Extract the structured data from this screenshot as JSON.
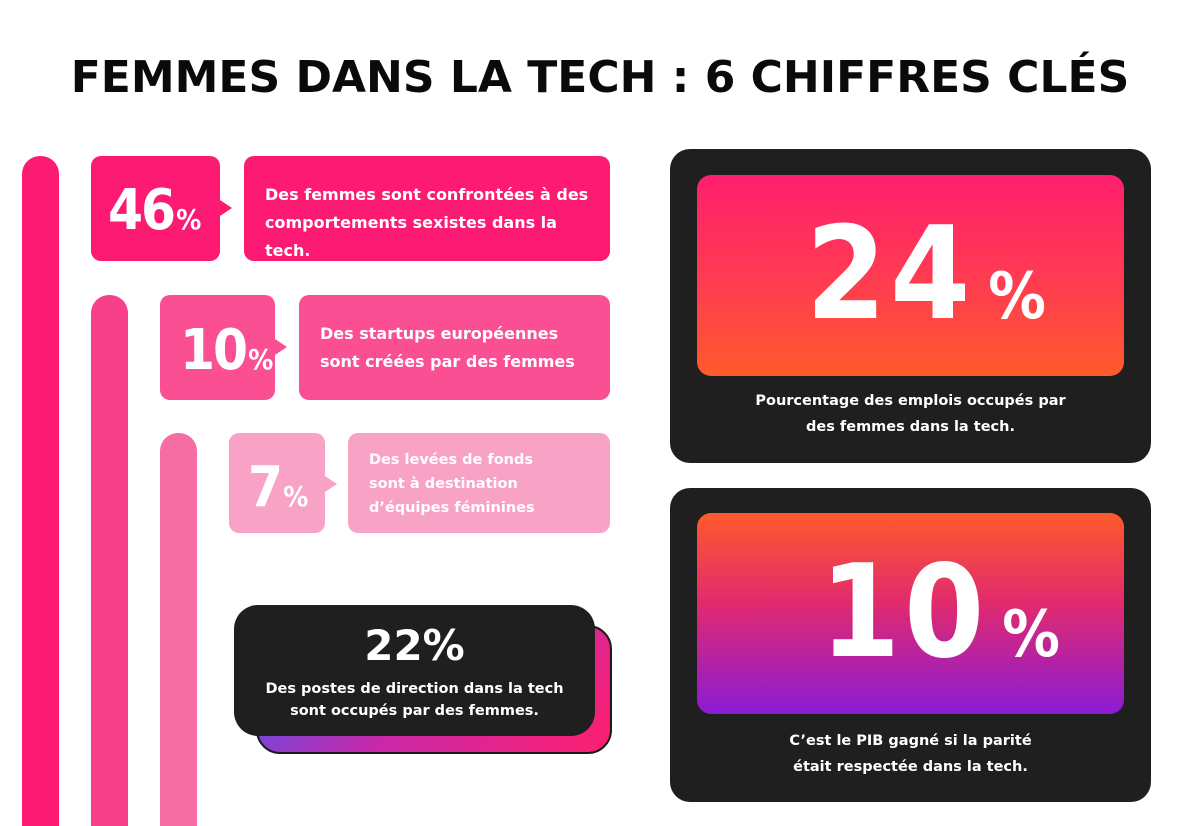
{
  "title": "FEMMES DANS LA TECH : 6 CHIFFRES CLÉS",
  "colors": {
    "pink_1": "#fc1a72",
    "pink_2": "#fb4f94",
    "pink_3": "#f8a3c6",
    "bar_1": "#fc1a72",
    "bar_2": "#f8408a",
    "bar_3": "#f56da2",
    "dark": "#1f1f1f"
  },
  "stats": [
    {
      "value": "46",
      "unit": "%",
      "text": "Des femmes sont confrontées à des comportements sexistes dans la tech."
    },
    {
      "value": "10",
      "unit": "%",
      "text": "Des startups européennes sont créées par des femmes"
    },
    {
      "value": "7",
      "unit": "%",
      "text": "Des levées de fonds sont à destination d’équipes féminines"
    }
  ],
  "leadership": {
    "value": "22%",
    "text": "Des postes de direction dans la tech sont occupés par des femmes."
  },
  "jobs": {
    "value": "24",
    "unit": "%",
    "caption": "Pourcentage des emplois occupés par des femmes dans la tech."
  },
  "gdp": {
    "value": "10",
    "unit": "%",
    "caption": "C’est le PIB gagné si la parité était respectée dans la tech."
  }
}
